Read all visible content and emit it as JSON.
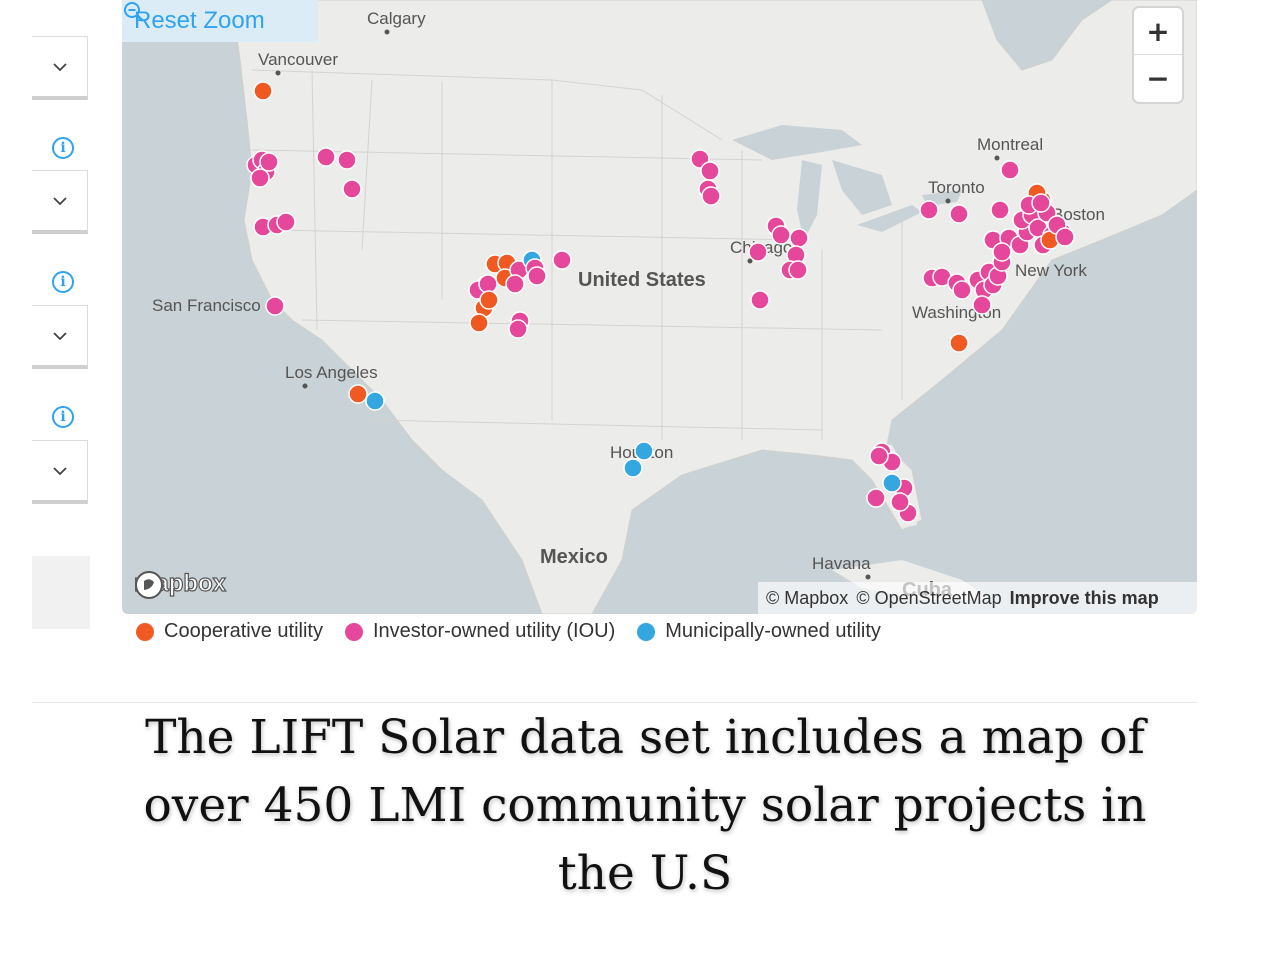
{
  "colors": {
    "cooperative": "#f05a22",
    "iou": "#e5489a",
    "municipal": "#34a6e0",
    "accent": "#2ea3f2"
  },
  "filters": {
    "dropdowns": 4,
    "chevron_icon": "chevron-down-icon",
    "info_icon": "info-icon"
  },
  "map": {
    "reset_zoom": "Reset Zoom",
    "zoom_in": "+",
    "zoom_out": "−",
    "logo": "mapbox",
    "attribution_mapbox": "© Mapbox",
    "attribution_osm": "© OpenStreetMap",
    "improve": "Improve this map",
    "country_label": "United States",
    "labels": [
      {
        "text": "Calgary",
        "kind": "city"
      },
      {
        "text": "Vancouver",
        "kind": "city"
      },
      {
        "text": "Montreal",
        "kind": "city"
      },
      {
        "text": "Toronto",
        "kind": "city"
      },
      {
        "text": "Boston",
        "kind": "city"
      },
      {
        "text": "Chicago",
        "kind": "city"
      },
      {
        "text": "New York",
        "kind": "city"
      },
      {
        "text": "San Francisco",
        "kind": "city"
      },
      {
        "text": "Washington",
        "kind": "city"
      },
      {
        "text": "Los Angeles",
        "kind": "city"
      },
      {
        "text": "Houston",
        "kind": "city"
      },
      {
        "text": "Mexico",
        "kind": "country"
      },
      {
        "text": "Havana",
        "kind": "city"
      },
      {
        "text": "Cuba",
        "kind": "country"
      }
    ]
  },
  "legend": [
    {
      "label": "Cooperative utility",
      "type": "cooperative"
    },
    {
      "label": "Investor-owned utility (IOU)",
      "type": "iou"
    },
    {
      "label": "Municipally-owned utility",
      "type": "municipal"
    }
  ],
  "caption": "The LIFT Solar data set includes a map of over 450 LMI community solar projects in the U.S"
}
